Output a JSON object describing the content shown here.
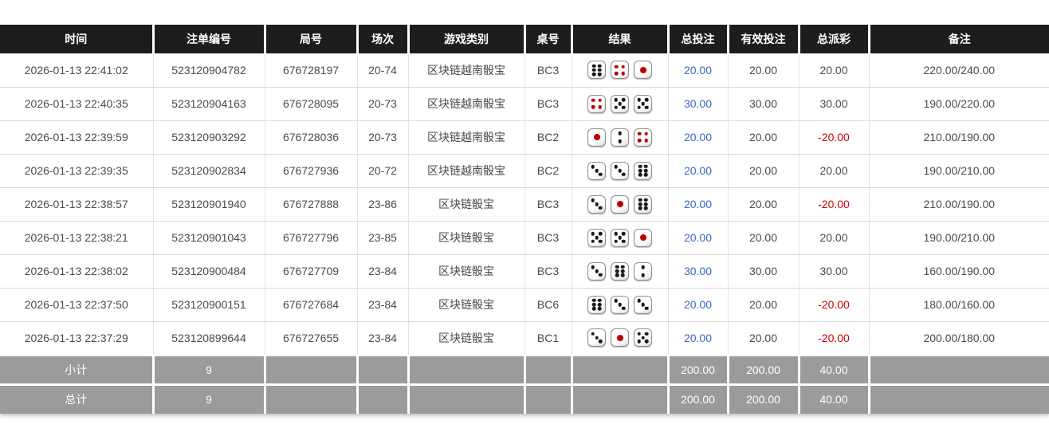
{
  "colors": {
    "header_bg": "#1d1d1d",
    "header_text": "#ffffff",
    "row_text": "#4a4a4a",
    "bet_blue": "#3a66c9",
    "negative_red": "#d40000",
    "footer_bg": "#9b9b9b",
    "pip_black": "#1a1a1a",
    "pip_red": "#c00000"
  },
  "table": {
    "columns": [
      {
        "key": "time",
        "label": "时间"
      },
      {
        "key": "bet_no",
        "label": "注单编号"
      },
      {
        "key": "round_no",
        "label": "局号"
      },
      {
        "key": "session",
        "label": "场次"
      },
      {
        "key": "game_type",
        "label": "游戏类别"
      },
      {
        "key": "table_no",
        "label": "桌号"
      },
      {
        "key": "result",
        "label": "结果"
      },
      {
        "key": "total_bet",
        "label": "总投注"
      },
      {
        "key": "valid_bet",
        "label": "有效投注"
      },
      {
        "key": "total_payout",
        "label": "总派彩"
      },
      {
        "key": "remark",
        "label": "备注"
      }
    ],
    "rows": [
      {
        "time": "2026-01-13 22:41:02",
        "bet_no": "523120904782",
        "round_no": "676728197",
        "session": "20-74",
        "game_type": "区块链越南骰宝",
        "table_no": "BC3",
        "dice": [
          6,
          4,
          1
        ],
        "total_bet": "20.00",
        "valid_bet": "20.00",
        "total_payout": "20.00",
        "remark": "220.00/240.00"
      },
      {
        "time": "2026-01-13 22:40:35",
        "bet_no": "523120904163",
        "round_no": "676728095",
        "session": "20-73",
        "game_type": "区块链越南骰宝",
        "table_no": "BC3",
        "dice": [
          4,
          5,
          5
        ],
        "total_bet": "30.00",
        "valid_bet": "30.00",
        "total_payout": "30.00",
        "remark": "190.00/220.00"
      },
      {
        "time": "2026-01-13 22:39:59",
        "bet_no": "523120903292",
        "round_no": "676728036",
        "session": "20-73",
        "game_type": "区块链越南骰宝",
        "table_no": "BC2",
        "dice": [
          1,
          2,
          4
        ],
        "total_bet": "20.00",
        "valid_bet": "20.00",
        "total_payout": "-20.00",
        "remark": "210.00/190.00"
      },
      {
        "time": "2026-01-13 22:39:35",
        "bet_no": "523120902834",
        "round_no": "676727936",
        "session": "20-72",
        "game_type": "区块链越南骰宝",
        "table_no": "BC2",
        "dice": [
          3,
          3,
          6
        ],
        "total_bet": "20.00",
        "valid_bet": "20.00",
        "total_payout": "20.00",
        "remark": "190.00/210.00"
      },
      {
        "time": "2026-01-13 22:38:57",
        "bet_no": "523120901940",
        "round_no": "676727888",
        "session": "23-86",
        "game_type": "区块链骰宝",
        "table_no": "BC3",
        "dice": [
          3,
          1,
          6
        ],
        "total_bet": "20.00",
        "valid_bet": "20.00",
        "total_payout": "-20.00",
        "remark": "210.00/190.00"
      },
      {
        "time": "2026-01-13 22:38:21",
        "bet_no": "523120901043",
        "round_no": "676727796",
        "session": "23-85",
        "game_type": "区块链骰宝",
        "table_no": "BC3",
        "dice": [
          5,
          5,
          1
        ],
        "total_bet": "20.00",
        "valid_bet": "20.00",
        "total_payout": "20.00",
        "remark": "190.00/210.00"
      },
      {
        "time": "2026-01-13 22:38:02",
        "bet_no": "523120900484",
        "round_no": "676727709",
        "session": "23-84",
        "game_type": "区块链骰宝",
        "table_no": "BC3",
        "dice": [
          3,
          6,
          2
        ],
        "total_bet": "30.00",
        "valid_bet": "30.00",
        "total_payout": "30.00",
        "remark": "160.00/190.00"
      },
      {
        "time": "2026-01-13 22:37:50",
        "bet_no": "523120900151",
        "round_no": "676727684",
        "session": "23-84",
        "game_type": "区块链骰宝",
        "table_no": "BC6",
        "dice": [
          6,
          3,
          3
        ],
        "total_bet": "20.00",
        "valid_bet": "20.00",
        "total_payout": "-20.00",
        "remark": "180.00/160.00"
      },
      {
        "time": "2026-01-13 22:37:29",
        "bet_no": "523120899644",
        "round_no": "676727655",
        "session": "23-84",
        "game_type": "区块链骰宝",
        "table_no": "BC1",
        "dice": [
          3,
          1,
          5
        ],
        "total_bet": "20.00",
        "valid_bet": "20.00",
        "total_payout": "-20.00",
        "remark": "200.00/180.00"
      }
    ],
    "subtotal": {
      "label": "小计",
      "count": "9",
      "total_bet": "200.00",
      "valid_bet": "200.00",
      "total_payout": "40.00"
    },
    "total": {
      "label": "总计",
      "count": "9",
      "total_bet": "200.00",
      "valid_bet": "200.00",
      "total_payout": "40.00"
    }
  }
}
